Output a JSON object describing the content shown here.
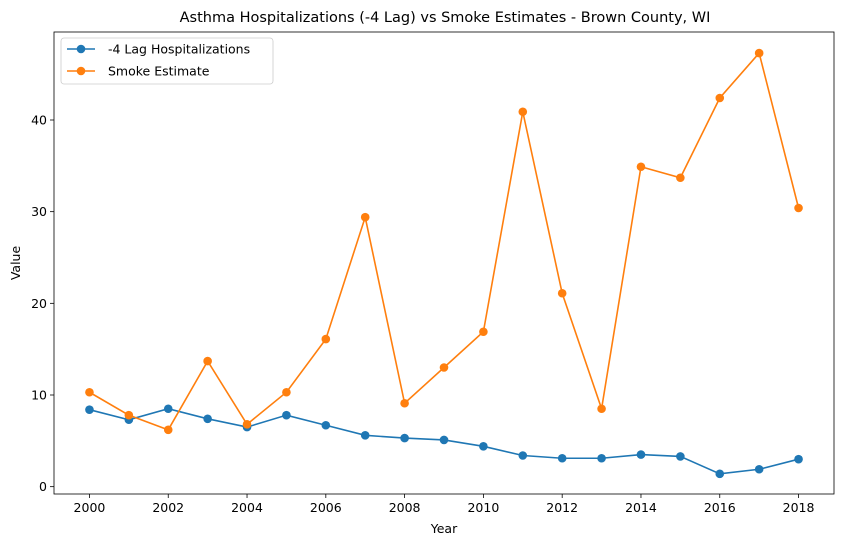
{
  "chart_data": {
    "type": "line",
    "title": "Asthma Hospitalizations (-4 Lag) vs Smoke Estimates - Brown County, WI",
    "xlabel": "Year",
    "ylabel": "Value",
    "xlim": [
      1999.1,
      2018.9
    ],
    "ylim": [
      -0.8,
      49.6
    ],
    "xticks": [
      2000,
      2002,
      2004,
      2006,
      2008,
      2010,
      2012,
      2014,
      2016,
      2018
    ],
    "yticks": [
      0,
      10,
      20,
      30,
      40
    ],
    "grid": false,
    "legend_position": "top-left",
    "x": [
      2000,
      2001,
      2002,
      2003,
      2004,
      2005,
      2006,
      2007,
      2008,
      2009,
      2010,
      2011,
      2012,
      2013,
      2014,
      2015,
      2016,
      2017,
      2018
    ],
    "series": [
      {
        "name": "-4 Lag Hospitalizations",
        "color": "#1f77b4",
        "values": [
          8.4,
          7.3,
          8.5,
          7.4,
          6.5,
          7.8,
          6.7,
          5.6,
          5.3,
          5.1,
          4.4,
          3.4,
          3.1,
          3.1,
          3.5,
          3.3,
          1.4,
          1.9,
          3.0
        ]
      },
      {
        "name": "Smoke Estimate",
        "color": "#ff7f0e",
        "values": [
          10.3,
          7.8,
          6.2,
          13.7,
          6.8,
          10.3,
          16.1,
          29.4,
          9.1,
          13.0,
          16.9,
          40.9,
          21.1,
          8.5,
          34.9,
          33.7,
          42.4,
          47.3,
          30.4
        ]
      }
    ]
  }
}
